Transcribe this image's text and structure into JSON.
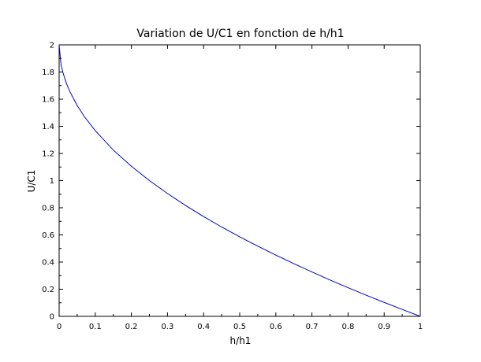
{
  "chart_data": {
    "type": "line",
    "title": "Variation de U/C1 en fonction de h/h1",
    "xlabel": "h/h1",
    "ylabel": "U/C1",
    "xlim": [
      0,
      1
    ],
    "ylim": [
      0,
      2
    ],
    "xticks": [
      "0",
      "0.1",
      "0.2",
      "0.3",
      "0.4",
      "0.5",
      "0.6",
      "0.7",
      "0.8",
      "0.9",
      "1"
    ],
    "yticks": [
      "0",
      "0.2",
      "0.4",
      "0.6",
      "0.8",
      "1",
      "1.2",
      "1.4",
      "1.6",
      "1.8",
      "2"
    ],
    "grid": false,
    "series": [
      {
        "color": "#0000cc",
        "x": [
          0,
          0.005,
          0.01,
          0.02,
          0.03,
          0.05,
          0.07,
          0.1,
          0.15,
          0.2,
          0.25,
          0.3,
          0.35,
          0.4,
          0.45,
          0.5,
          0.55,
          0.6,
          0.65,
          0.7,
          0.75,
          0.8,
          0.85,
          0.9,
          0.95,
          1.0
        ],
        "y": [
          2.0,
          1.859,
          1.8,
          1.717,
          1.654,
          1.553,
          1.471,
          1.368,
          1.225,
          1.106,
          1.0,
          0.905,
          0.817,
          0.735,
          0.658,
          0.586,
          0.517,
          0.451,
          0.388,
          0.327,
          0.268,
          0.211,
          0.156,
          0.103,
          0.051,
          0.0
        ]
      }
    ]
  }
}
